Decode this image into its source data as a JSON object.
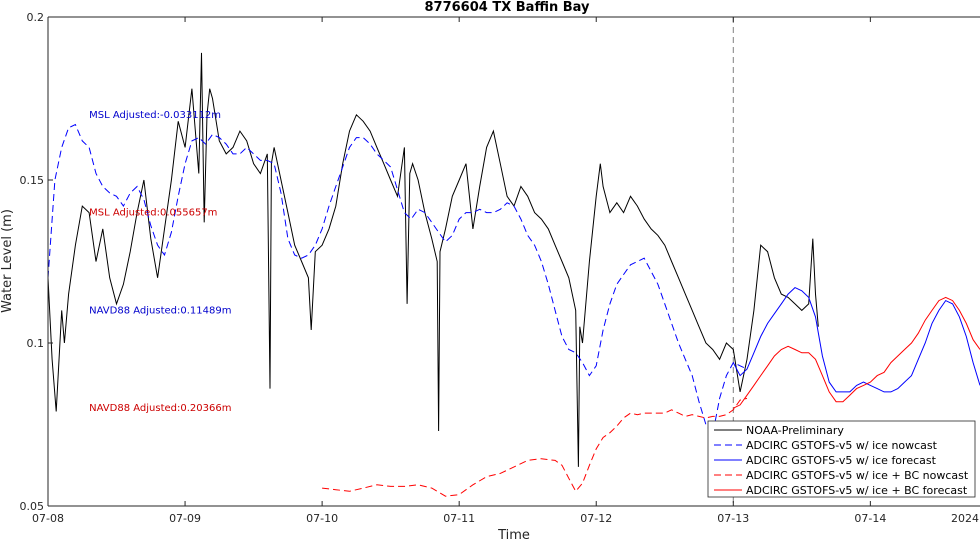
{
  "chart_data": {
    "type": "line",
    "title": "8776604 TX Baffin Bay",
    "xlabel": "Time",
    "ylabel": "Water Level (m)",
    "ylim": [
      0.05,
      0.2
    ],
    "xlim": [
      0,
      6.8
    ],
    "x_ticks": [
      {
        "x": 0,
        "label": "07-08"
      },
      {
        "x": 1,
        "label": "07-09"
      },
      {
        "x": 2,
        "label": "07-10"
      },
      {
        "x": 3,
        "label": "07-11"
      },
      {
        "x": 4,
        "label": "07-12"
      },
      {
        "x": 5,
        "label": "07-13"
      },
      {
        "x": 6,
        "label": "07-14"
      }
    ],
    "y_ticks": [
      0.05,
      0.1,
      0.15,
      0.2
    ],
    "year_label": "2024",
    "now_line_x": 5.0,
    "grid": false,
    "legend_position": "bottom-right",
    "annotations": [
      {
        "text": "MSL Adjusted:-0.033112m",
        "x": 0.3,
        "y": 0.17,
        "color": "#0000cc"
      },
      {
        "text": "MSL Adjusted:0.055657m",
        "x": 0.3,
        "y": 0.14,
        "color": "#cc0000"
      },
      {
        "text": "NAVD88 Adjusted:0.11489m",
        "x": 0.3,
        "y": 0.11,
        "color": "#0000cc"
      },
      {
        "text": "NAVD88 Adjusted:0.20366m",
        "x": 0.3,
        "y": 0.08,
        "color": "#cc0000"
      }
    ],
    "series": [
      {
        "name": "NOAA-Preliminary",
        "color": "#000000",
        "dash": "solid",
        "x": [
          0.0,
          0.03,
          0.06,
          0.1,
          0.12,
          0.15,
          0.2,
          0.25,
          0.3,
          0.35,
          0.4,
          0.45,
          0.5,
          0.55,
          0.6,
          0.65,
          0.7,
          0.75,
          0.8,
          0.85,
          0.9,
          0.95,
          1.0,
          1.05,
          1.1,
          1.12,
          1.14,
          1.16,
          1.18,
          1.2,
          1.25,
          1.3,
          1.35,
          1.4,
          1.45,
          1.5,
          1.55,
          1.6,
          1.62,
          1.63,
          1.65,
          1.7,
          1.75,
          1.8,
          1.85,
          1.9,
          1.92,
          1.95,
          2.0,
          2.05,
          2.1,
          2.15,
          2.2,
          2.25,
          2.3,
          2.35,
          2.4,
          2.45,
          2.5,
          2.55,
          2.6,
          2.62,
          2.64,
          2.66,
          2.7,
          2.75,
          2.8,
          2.84,
          2.85,
          2.86,
          2.9,
          2.95,
          3.0,
          3.05,
          3.1,
          3.15,
          3.2,
          3.25,
          3.3,
          3.35,
          3.4,
          3.45,
          3.5,
          3.55,
          3.6,
          3.65,
          3.7,
          3.75,
          3.8,
          3.85,
          3.87,
          3.88,
          3.9,
          3.95,
          4.0,
          4.03,
          4.05,
          4.1,
          4.15,
          4.2,
          4.25,
          4.3,
          4.35,
          4.4,
          4.45,
          4.5,
          4.55,
          4.6,
          4.65,
          4.7,
          4.75,
          4.8,
          4.85,
          4.9,
          4.95,
          5.0,
          5.05,
          5.1,
          5.15,
          5.2,
          5.25,
          5.3,
          5.35,
          5.4,
          5.45,
          5.5,
          5.55,
          5.58,
          5.6,
          5.62
        ],
        "y": [
          0.12,
          0.095,
          0.079,
          0.11,
          0.1,
          0.115,
          0.13,
          0.142,
          0.14,
          0.125,
          0.135,
          0.12,
          0.112,
          0.118,
          0.128,
          0.14,
          0.15,
          0.132,
          0.12,
          0.135,
          0.15,
          0.168,
          0.16,
          0.178,
          0.152,
          0.189,
          0.137,
          0.17,
          0.178,
          0.175,
          0.162,
          0.158,
          0.16,
          0.165,
          0.162,
          0.155,
          0.152,
          0.158,
          0.086,
          0.155,
          0.16,
          0.15,
          0.14,
          0.13,
          0.125,
          0.12,
          0.104,
          0.128,
          0.13,
          0.135,
          0.142,
          0.155,
          0.165,
          0.17,
          0.168,
          0.165,
          0.16,
          0.155,
          0.15,
          0.145,
          0.16,
          0.112,
          0.152,
          0.155,
          0.15,
          0.14,
          0.132,
          0.125,
          0.073,
          0.128,
          0.135,
          0.145,
          0.15,
          0.155,
          0.135,
          0.148,
          0.16,
          0.165,
          0.155,
          0.145,
          0.142,
          0.148,
          0.145,
          0.14,
          0.138,
          0.135,
          0.13,
          0.125,
          0.12,
          0.11,
          0.062,
          0.105,
          0.1,
          0.125,
          0.145,
          0.155,
          0.148,
          0.14,
          0.143,
          0.14,
          0.145,
          0.142,
          0.138,
          0.135,
          0.133,
          0.13,
          0.125,
          0.12,
          0.115,
          0.11,
          0.105,
          0.1,
          0.098,
          0.095,
          0.1,
          0.098,
          0.085,
          0.095,
          0.11,
          0.13,
          0.128,
          0.12,
          0.115,
          0.114,
          0.112,
          0.11,
          0.112,
          0.132,
          0.115,
          0.105
        ]
      },
      {
        "name": "ADCIRC GSTOFS-v5 w/ ice nowcast",
        "color": "#0000ff",
        "dash": "dashed",
        "x": [
          0.0,
          0.05,
          0.1,
          0.15,
          0.2,
          0.25,
          0.3,
          0.35,
          0.4,
          0.45,
          0.5,
          0.55,
          0.6,
          0.65,
          0.7,
          0.75,
          0.8,
          0.85,
          0.9,
          0.95,
          1.0,
          1.05,
          1.1,
          1.15,
          1.2,
          1.25,
          1.3,
          1.35,
          1.4,
          1.45,
          1.5,
          1.55,
          1.6,
          1.65,
          1.7,
          1.75,
          1.8,
          1.85,
          1.9,
          1.95,
          2.0,
          2.05,
          2.1,
          2.15,
          2.2,
          2.25,
          2.3,
          2.35,
          2.4,
          2.45,
          2.5,
          2.55,
          2.6,
          2.65,
          2.7,
          2.75,
          2.8,
          2.85,
          2.9,
          2.95,
          3.0,
          3.05,
          3.1,
          3.15,
          3.2,
          3.25,
          3.3,
          3.35,
          3.4,
          3.45,
          3.5,
          3.55,
          3.6,
          3.65,
          3.7,
          3.75,
          3.8,
          3.85,
          3.9,
          3.95,
          4.0,
          4.05,
          4.1,
          4.15,
          4.2,
          4.25,
          4.3,
          4.35,
          4.4,
          4.45,
          4.5,
          4.55,
          4.6,
          4.65,
          4.7,
          4.75,
          4.8,
          4.85,
          4.9,
          4.95,
          5.0,
          5.05,
          5.1
        ],
        "y": [
          0.12,
          0.15,
          0.16,
          0.166,
          0.167,
          0.162,
          0.16,
          0.152,
          0.148,
          0.146,
          0.145,
          0.142,
          0.146,
          0.148,
          0.144,
          0.136,
          0.13,
          0.127,
          0.134,
          0.145,
          0.155,
          0.162,
          0.163,
          0.161,
          0.164,
          0.163,
          0.161,
          0.158,
          0.158,
          0.16,
          0.158,
          0.156,
          0.156,
          0.155,
          0.146,
          0.132,
          0.127,
          0.126,
          0.127,
          0.13,
          0.135,
          0.142,
          0.148,
          0.154,
          0.16,
          0.163,
          0.163,
          0.161,
          0.158,
          0.156,
          0.154,
          0.147,
          0.14,
          0.138,
          0.141,
          0.14,
          0.137,
          0.134,
          0.131,
          0.133,
          0.138,
          0.14,
          0.14,
          0.141,
          0.14,
          0.14,
          0.141,
          0.143,
          0.142,
          0.138,
          0.133,
          0.13,
          0.125,
          0.118,
          0.11,
          0.102,
          0.098,
          0.097,
          0.094,
          0.09,
          0.093,
          0.104,
          0.112,
          0.118,
          0.121,
          0.124,
          0.125,
          0.126,
          0.122,
          0.118,
          0.112,
          0.106,
          0.1,
          0.095,
          0.09,
          0.082,
          0.075,
          0.072,
          0.083,
          0.09,
          0.094,
          0.093,
          0.092
        ]
      },
      {
        "name": "ADCIRC GSTOFS-v5 w/ ice forecast",
        "color": "#0000ff",
        "dash": "solid",
        "x": [
          5.0,
          5.05,
          5.1,
          5.15,
          5.2,
          5.25,
          5.3,
          5.35,
          5.4,
          5.45,
          5.5,
          5.55,
          5.6,
          5.65,
          5.7,
          5.75,
          5.8,
          5.85,
          5.9,
          5.95,
          6.0,
          6.05,
          6.1,
          6.15,
          6.2,
          6.25,
          6.3,
          6.35,
          6.4,
          6.45,
          6.5,
          6.55,
          6.6,
          6.65,
          6.7,
          6.75,
          6.8
        ],
        "y": [
          0.094,
          0.09,
          0.092,
          0.097,
          0.102,
          0.106,
          0.109,
          0.112,
          0.115,
          0.117,
          0.116,
          0.114,
          0.108,
          0.096,
          0.088,
          0.085,
          0.085,
          0.085,
          0.087,
          0.088,
          0.087,
          0.086,
          0.085,
          0.085,
          0.086,
          0.088,
          0.09,
          0.095,
          0.1,
          0.106,
          0.11,
          0.113,
          0.112,
          0.108,
          0.102,
          0.094,
          0.087
        ]
      },
      {
        "name": "ADCIRC GSTOFS-v5 w/ ice + BC nowcast",
        "color": "#ff0000",
        "dash": "dashed",
        "x": [
          2.0,
          2.1,
          2.2,
          2.3,
          2.4,
          2.5,
          2.6,
          2.7,
          2.8,
          2.9,
          3.0,
          3.1,
          3.2,
          3.3,
          3.4,
          3.5,
          3.6,
          3.7,
          3.75,
          3.8,
          3.85,
          3.9,
          3.95,
          4.0,
          4.05,
          4.1,
          4.15,
          4.2,
          4.25,
          4.3,
          4.35,
          4.4,
          4.45,
          4.5,
          4.55,
          4.6,
          4.65,
          4.7,
          4.75,
          4.8,
          4.85,
          4.9,
          4.95,
          5.0,
          5.05,
          5.1
        ],
        "y": [
          0.0555,
          0.055,
          0.0545,
          0.0555,
          0.0565,
          0.056,
          0.056,
          0.0565,
          0.0555,
          0.053,
          0.0535,
          0.0565,
          0.059,
          0.06,
          0.062,
          0.064,
          0.0645,
          0.064,
          0.0625,
          0.0585,
          0.0545,
          0.057,
          0.0625,
          0.0675,
          0.071,
          0.0725,
          0.0745,
          0.077,
          0.0785,
          0.078,
          0.0785,
          0.0785,
          0.0785,
          0.0785,
          0.0795,
          0.0785,
          0.0775,
          0.078,
          0.0775,
          0.077,
          0.0775,
          0.0775,
          0.078,
          0.0795,
          0.0825,
          0.083
        ]
      },
      {
        "name": "ADCIRC GSTOFS-v5 w/ ice + BC forecast",
        "color": "#ff0000",
        "dash": "solid",
        "x": [
          5.0,
          5.05,
          5.1,
          5.15,
          5.2,
          5.25,
          5.3,
          5.35,
          5.4,
          5.45,
          5.5,
          5.55,
          5.6,
          5.65,
          5.7,
          5.75,
          5.8,
          5.85,
          5.9,
          5.95,
          6.0,
          6.05,
          6.1,
          6.15,
          6.2,
          6.25,
          6.3,
          6.35,
          6.4,
          6.45,
          6.5,
          6.55,
          6.6,
          6.65,
          6.7,
          6.75,
          6.8
        ],
        "y": [
          0.08,
          0.081,
          0.084,
          0.087,
          0.09,
          0.093,
          0.096,
          0.098,
          0.099,
          0.098,
          0.097,
          0.097,
          0.095,
          0.09,
          0.085,
          0.082,
          0.082,
          0.084,
          0.086,
          0.087,
          0.088,
          0.09,
          0.091,
          0.094,
          0.096,
          0.098,
          0.1,
          0.103,
          0.107,
          0.11,
          0.113,
          0.114,
          0.113,
          0.11,
          0.106,
          0.101,
          0.098
        ]
      }
    ]
  }
}
